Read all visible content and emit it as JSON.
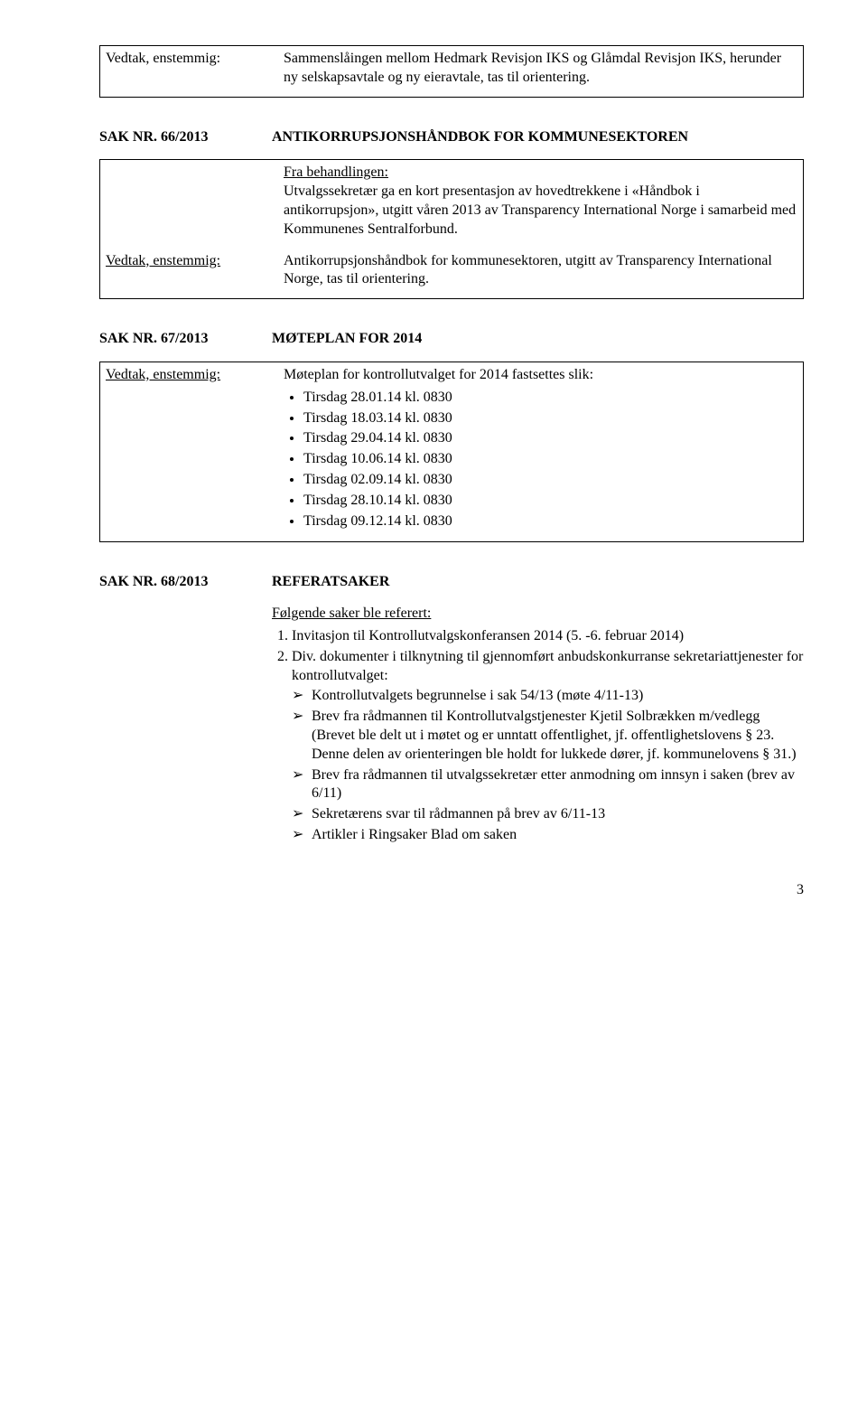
{
  "sak65": {
    "left_label": "Vedtak, enstemmig:",
    "text": "Sammenslåingen mellom Hedmark Revisjon IKS og Glåmdal Revisjon IKS, herunder ny selskapsavtale og ny eieravtale, tas til orientering."
  },
  "sak66": {
    "nr_label": "SAK NR. 66/2013",
    "title": "ANTIKORRUPSJONSHÅNDBOK FOR KOMMUNESEKTOREN",
    "fra_label": "Fra behandlingen:",
    "fra_text": "Utvalgssekretær ga en kort presentasjon av hovedtrekkene i «Håndbok i antikorrupsjon», utgitt våren 2013 av Transparency International Norge i samarbeid med Kommunenes Sentralforbund.",
    "vedtak_label": "Vedtak, enstemmig:",
    "vedtak_text": "Antikorrupsjonshåndbok for kommunesektoren, utgitt av Transparency International Norge, tas til orientering."
  },
  "sak67": {
    "nr_label": "SAK NR. 67/2013",
    "title": "MØTEPLAN FOR 2014",
    "vedtak_label": "Vedtak, enstemmig:",
    "vedtak_intro": "Møteplan for kontrollutvalget for 2014 fastsettes slik:",
    "items": [
      "Tirsdag 28.01.14 kl. 0830",
      "Tirsdag 18.03.14 kl. 0830",
      "Tirsdag 29.04.14 kl. 0830",
      "Tirsdag 10.06.14 kl. 0830",
      "Tirsdag 02.09.14 kl. 0830",
      "Tirsdag 28.10.14 kl. 0830",
      "Tirsdag 09.12.14 kl. 0830"
    ]
  },
  "sak68": {
    "nr_label": "SAK NR. 68/2013",
    "title": "REFERATSAKER",
    "ref_label": "Følgende saker ble referert:",
    "item1": "Invitasjon til Kontrollutvalgskonferansen 2014 (5. -6. februar 2014)",
    "item2_lead": "Div. dokumenter i tilknytning til gjennomført anbudskonkurranse sekretariattjenester for kontrollutvalget:",
    "item2_subs": [
      "Kontrollutvalgets begrunnelse i sak 54/13 (møte 4/11-13)",
      "Brev fra rådmannen til Kontrollutvalgstjenester Kjetil Solbrækken m/vedlegg (Brevet ble delt ut i møtet og er unntatt offentlighet, jf. offentlighetslovens § 23. Denne delen av orienteringen ble holdt for lukkede dører, jf. kommunelovens § 31.)",
      "Brev fra rådmannen til utvalgssekretær etter anmodning om innsyn i saken (brev av 6/11)",
      "Sekretærens svar til rådmannen på brev av 6/11-13",
      "Artikler i Ringsaker Blad om saken"
    ]
  },
  "page_number": "3"
}
